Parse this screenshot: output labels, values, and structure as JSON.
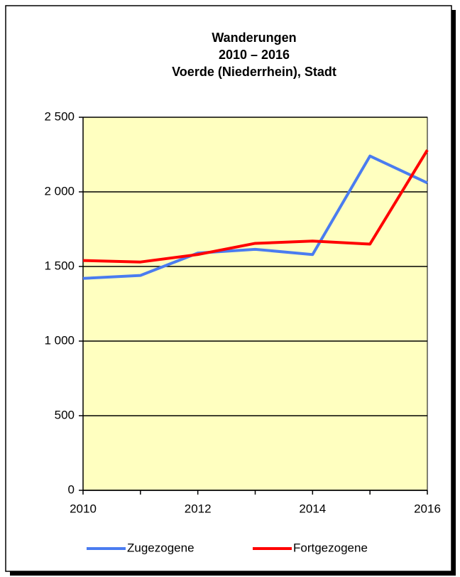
{
  "chart_data": {
    "type": "line",
    "title": [
      "Wanderungen",
      "2010 – 2016",
      "Voerde (Niederrhein), Stadt"
    ],
    "x": [
      2010,
      2011,
      2012,
      2013,
      2014,
      2015,
      2016
    ],
    "series": [
      {
        "name": "Zugezogene",
        "color": "#4a7cf0",
        "values": [
          1420,
          1440,
          1590,
          1615,
          1580,
          2240,
          2060
        ]
      },
      {
        "name": "Fortgezogene",
        "color": "#ff0000",
        "values": [
          1540,
          1530,
          1580,
          1655,
          1670,
          1650,
          2280
        ]
      }
    ],
    "xlim": [
      2010,
      2016
    ],
    "xticks": [
      2010,
      2012,
      2014,
      2016
    ],
    "ylim": [
      0,
      2500
    ],
    "yticks": [
      0,
      500,
      {
        "value": 1000,
        "label": "1 000"
      },
      {
        "value": 1500,
        "label": "1 500"
      },
      {
        "value": 2000,
        "label": "2 000"
      },
      {
        "value": 2500,
        "label": "2 500"
      }
    ],
    "grid": true,
    "plot_background": "#ffffc0",
    "legend": "bottom"
  }
}
